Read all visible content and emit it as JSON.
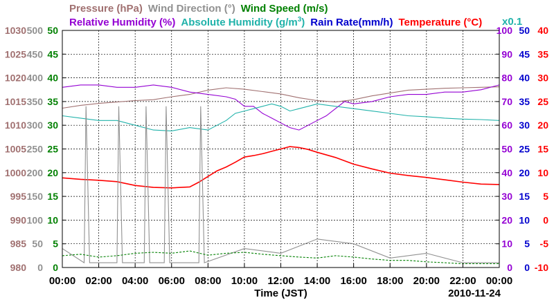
{
  "chart_data": {
    "type": "line",
    "xlabel": "Time (JST)",
    "date": "2010-11-24",
    "x_ticks": [
      "00:00",
      "02:00",
      "04:00",
      "06:00",
      "08:00",
      "10:00",
      "12:00",
      "14:00",
      "16:00",
      "18:00",
      "20:00",
      "22:00",
      "00:00"
    ],
    "xlim": [
      0,
      24
    ],
    "grid": true,
    "legend_row1": [
      {
        "name": "Pressure (hPa)",
        "color": "#a07070"
      },
      {
        "name": "Wind Direction (°)",
        "color": "#909090"
      },
      {
        "name": "Wind Speed (m/s)",
        "color": "#008000"
      }
    ],
    "legend_row2": [
      {
        "name": "Relative Humidity (%)",
        "color": "#9400d3"
      },
      {
        "name": "Absolute Humidity (g/m",
        "sup": "3",
        "tail": ")",
        "color": "#20b2aa"
      },
      {
        "name": "Rain Rate(mm/h)",
        "color": "#0000cd"
      },
      {
        "name": "Temperature (°C)",
        "color": "#ff0000"
      }
    ],
    "scale_note": "x0.1",
    "axes": [
      {
        "name": "Pressure",
        "unit": "hPa",
        "color": "#a07070",
        "side": "left",
        "range": [
          980,
          1030
        ],
        "ticks": [
          "980",
          "985",
          "990",
          "995",
          "1000",
          "1005",
          "1010",
          "1015",
          "1020",
          "1025",
          "1030"
        ]
      },
      {
        "name": "Wind Direction",
        "unit": "°",
        "color": "#909090",
        "side": "left",
        "range": [
          0,
          500
        ],
        "ticks": [
          "0",
          "50",
          "100",
          "150",
          "200",
          "250",
          "300",
          "350",
          "400",
          "450",
          "500"
        ]
      },
      {
        "name": "Wind Speed",
        "unit": "m/s",
        "color": "#008000",
        "side": "left",
        "range": [
          0,
          50
        ],
        "ticks": [
          "0",
          "5",
          "10",
          "15",
          "20",
          "25",
          "30",
          "35",
          "40",
          "45",
          "50"
        ]
      },
      {
        "name": "Relative Humidity",
        "unit": "%",
        "color": "#9400d3",
        "side": "right",
        "range": [
          0,
          100
        ],
        "ticks": [
          "0",
          "10",
          "20",
          "30",
          "40",
          "50",
          "60",
          "70",
          "80",
          "90",
          "100"
        ]
      },
      {
        "name": "Rain Rate",
        "unit": "mm/h",
        "color": "#0000cd",
        "side": "right",
        "range": [
          0,
          50
        ],
        "ticks": [
          "0",
          "5",
          "10",
          "15",
          "20",
          "25",
          "30",
          "35",
          "40",
          "45",
          "50"
        ]
      },
      {
        "name": "Temperature",
        "unit": "°C",
        "color": "#ff0000",
        "side": "right",
        "range": [
          -10,
          40
        ],
        "ticks": [
          "-10",
          "-5",
          "0",
          "5",
          "10",
          "15",
          "20",
          "25",
          "30",
          "35",
          "40"
        ]
      }
    ],
    "series": [
      {
        "name": "Temperature",
        "color": "#ff0000",
        "axis": "Temperature",
        "x": [
          0,
          1,
          2,
          3,
          4,
          5,
          6,
          7,
          7.5,
          8,
          8.5,
          9,
          9.5,
          10,
          10.5,
          11,
          11.5,
          12,
          12.5,
          13,
          13.5,
          14,
          15,
          16,
          17,
          18,
          19,
          20,
          21,
          22,
          23,
          24
        ],
        "y": [
          8.9,
          8.6,
          8.4,
          8.1,
          7.3,
          6.9,
          6.8,
          7.0,
          8.0,
          9.2,
          10.4,
          11.2,
          12.2,
          13.3,
          13.6,
          14.0,
          14.5,
          15.0,
          15.5,
          15.3,
          14.9,
          14.3,
          13.2,
          11.8,
          10.8,
          9.9,
          9.4,
          9.0,
          8.5,
          8.0,
          7.6,
          7.5
        ]
      },
      {
        "name": "Pressure",
        "color": "#a07070",
        "axis": "Pressure",
        "x": [
          0,
          1,
          2,
          3,
          4,
          5,
          6,
          7,
          8,
          9,
          10,
          11,
          12,
          13,
          14,
          15,
          16,
          17,
          18,
          19,
          20,
          21,
          22,
          23,
          24
        ],
        "y": [
          1013.6,
          1014.2,
          1014.6,
          1014.9,
          1015.2,
          1015.4,
          1016.0,
          1016.5,
          1017.4,
          1017.9,
          1017.6,
          1017.1,
          1016.6,
          1015.8,
          1015.2,
          1014.9,
          1015.4,
          1016.2,
          1016.8,
          1017.4,
          1017.6,
          1017.8,
          1017.9,
          1018.0,
          1018.1
        ]
      },
      {
        "name": "Relative Humidity",
        "color": "#9400d3",
        "axis": "Relative Humidity",
        "x": [
          0,
          1,
          2,
          3,
          4,
          5,
          6,
          7,
          8,
          9,
          9.5,
          10,
          10.5,
          11,
          11.5,
          12,
          12.5,
          13,
          13.5,
          14,
          14.5,
          15,
          15.5,
          16,
          17,
          18,
          19,
          20,
          21,
          22,
          23,
          24
        ],
        "y": [
          76,
          77,
          77,
          76,
          76,
          77,
          76,
          74,
          73,
          72,
          71,
          68,
          68,
          65,
          63,
          61,
          59,
          58,
          60,
          62,
          64,
          67,
          70,
          69,
          70,
          72,
          73,
          73,
          74,
          74,
          75,
          77
        ]
      },
      {
        "name": "Absolute Humidity",
        "color": "#20b2aa",
        "axis": "Wind Speed",
        "x": [
          0,
          1,
          2,
          3,
          4,
          5,
          6,
          7,
          8,
          8.5,
          9,
          9.5,
          10,
          10.5,
          11,
          11.5,
          12,
          12.5,
          13,
          13.5,
          14,
          15,
          16,
          17,
          18,
          19,
          20,
          21,
          22,
          23,
          24
        ],
        "y": [
          32,
          31.5,
          31,
          31,
          30,
          29,
          28.8,
          29.5,
          29,
          30,
          31,
          32.5,
          33,
          33.5,
          34,
          34.5,
          34,
          33,
          33.5,
          34,
          34.5,
          34,
          33.5,
          33,
          32.5,
          32,
          31.8,
          31.5,
          31.3,
          31.2,
          31
        ]
      },
      {
        "name": "Wind Direction",
        "color": "#909090",
        "axis": "Wind Direction",
        "x": [
          0,
          1.2,
          1.3,
          1.5,
          3,
          3.1,
          3.3,
          4.5,
          4.6,
          4.8,
          5.6,
          5.7,
          5.9,
          7.5,
          7.6,
          7.8,
          10,
          12,
          14,
          16,
          18,
          20,
          22,
          24
        ],
        "y": [
          40,
          10,
          340,
          10,
          10,
          340,
          10,
          10,
          340,
          10,
          10,
          340,
          10,
          10,
          340,
          10,
          40,
          30,
          60,
          50,
          20,
          30,
          10,
          10
        ]
      },
      {
        "name": "Wind Speed",
        "color": "#008000",
        "axis": "Wind Speed",
        "x": [
          0,
          1,
          2,
          3,
          4,
          5,
          6,
          7,
          8,
          9,
          10,
          11,
          12,
          13,
          14,
          15,
          16,
          17,
          18,
          19,
          20,
          21,
          22,
          23,
          24
        ],
        "y": [
          2.5,
          2.8,
          2.2,
          2.5,
          3.0,
          3.2,
          3.0,
          3.5,
          2.6,
          3.0,
          3.2,
          2.8,
          2.5,
          2.2,
          2.0,
          2.5,
          2.2,
          1.8,
          1.5,
          1.5,
          1.2,
          1.0,
          0.8,
          0.8,
          0.8
        ]
      },
      {
        "name": "Rain Rate",
        "color": "#0000cd",
        "axis": "Rain Rate",
        "x": [
          0,
          24
        ],
        "y": [
          0,
          0
        ]
      }
    ]
  }
}
